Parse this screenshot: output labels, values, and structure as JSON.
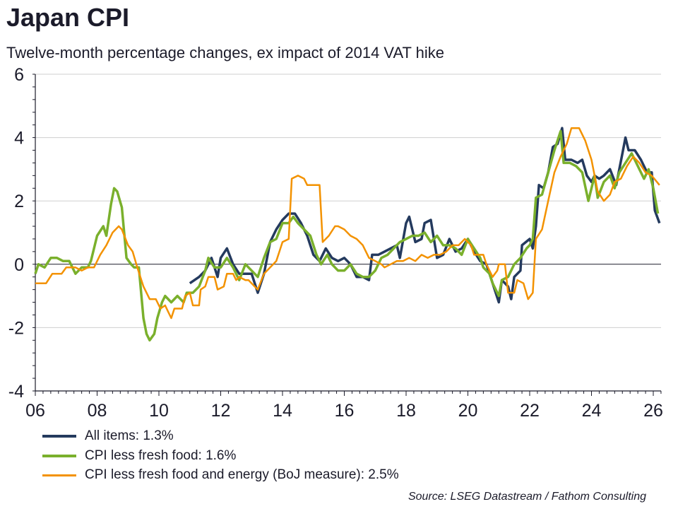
{
  "title": "Japan CPI",
  "subtitle": "Twelve-month percentage changes, ex impact of 2014 VAT hike",
  "source": "Source: LSEG Datastream / Fathom Consulting",
  "chart_data": {
    "type": "line",
    "title": "Japan CPI",
    "ylim": [
      -4,
      6
    ],
    "xlim": [
      2006,
      2026.3
    ],
    "yticks": [
      "-4",
      "-2",
      "0",
      "2",
      "4",
      "6"
    ],
    "xticks": [
      "06",
      "08",
      "10",
      "12",
      "14",
      "16",
      "18",
      "20",
      "22",
      "24",
      "26"
    ],
    "grid": true,
    "legend_position": "bottom-left",
    "series": [
      {
        "name": "All items: 1.3%",
        "color": "#243a5e",
        "width": 3.5,
        "x": [
          2011.0,
          2011.3,
          2011.5,
          2011.7,
          2011.9,
          2012.0,
          2012.2,
          2012.4,
          2012.6,
          2012.8,
          2013.0,
          2013.2,
          2013.4,
          2013.6,
          2013.8,
          2014.0,
          2014.2,
          2014.4,
          2014.6,
          2014.8,
          2015.0,
          2015.2,
          2015.4,
          2015.6,
          2015.8,
          2016.0,
          2016.2,
          2016.4,
          2016.6,
          2016.8,
          2016.9,
          2017.1,
          2017.3,
          2017.5,
          2017.7,
          2017.8,
          2018.0,
          2018.1,
          2018.3,
          2018.5,
          2018.6,
          2018.8,
          2018.9,
          2019.0,
          2019.2,
          2019.4,
          2019.6,
          2019.8,
          2020.0,
          2020.2,
          2020.4,
          2020.6,
          2020.8,
          2021.0,
          2021.1,
          2021.3,
          2021.4,
          2021.5,
          2021.7,
          2021.75,
          2022.0,
          2022.1,
          2022.2,
          2022.3,
          2022.45,
          2022.6,
          2022.75,
          2022.9,
          2023.05,
          2023.15,
          2023.35,
          2023.55,
          2023.7,
          2023.85,
          2024.0,
          2024.1,
          2024.25,
          2024.4,
          2024.6,
          2024.8,
          2025.0,
          2025.1,
          2025.2,
          2025.4,
          2025.6,
          2025.8,
          2025.95,
          2026.05,
          2026.2
        ],
        "y": [
          -0.6,
          -0.4,
          -0.2,
          0.2,
          -0.4,
          0.2,
          0.5,
          0.0,
          -0.3,
          -0.3,
          -0.3,
          -0.9,
          -0.3,
          0.7,
          1.1,
          1.4,
          1.6,
          1.6,
          1.3,
          0.9,
          0.3,
          0.1,
          0.5,
          0.2,
          0.1,
          0.2,
          0.0,
          -0.4,
          -0.4,
          -0.5,
          0.3,
          0.3,
          0.4,
          0.5,
          0.6,
          0.2,
          1.3,
          1.5,
          0.7,
          0.8,
          1.3,
          1.4,
          0.8,
          0.2,
          0.3,
          0.8,
          0.4,
          0.5,
          0.8,
          0.4,
          0.1,
          0.0,
          -0.6,
          -1.2,
          -0.5,
          -0.7,
          -1.1,
          -0.4,
          -0.2,
          0.6,
          0.8,
          0.5,
          1.2,
          2.5,
          2.4,
          2.9,
          3.7,
          3.8,
          4.3,
          3.3,
          3.3,
          3.2,
          3.3,
          2.8,
          2.6,
          2.8,
          2.7,
          2.8,
          3.0,
          2.5,
          3.5,
          4.0,
          3.6,
          3.6,
          3.3,
          2.9,
          2.9,
          1.7,
          1.3
        ]
      },
      {
        "name": "CPI less fresh food: 1.6%",
        "color": "#7ab02c",
        "width": 3.5,
        "x": [
          2006.0,
          2006.1,
          2006.3,
          2006.5,
          2006.7,
          2006.9,
          2007.1,
          2007.3,
          2007.5,
          2007.7,
          2007.8,
          2008.0,
          2008.2,
          2008.3,
          2008.45,
          2008.55,
          2008.65,
          2008.8,
          2008.95,
          2009.1,
          2009.2,
          2009.35,
          2009.5,
          2009.6,
          2009.7,
          2009.85,
          2009.95,
          2010.1,
          2010.2,
          2010.4,
          2010.6,
          2010.8,
          2010.9,
          2011.1,
          2011.3,
          2011.5,
          2011.6,
          2011.8,
          2012.0,
          2012.2,
          2012.4,
          2012.6,
          2012.8,
          2013.0,
          2013.2,
          2013.4,
          2013.6,
          2013.8,
          2014.0,
          2014.2,
          2014.35,
          2014.5,
          2014.7,
          2014.9,
          2015.1,
          2015.25,
          2015.45,
          2015.6,
          2015.8,
          2016.0,
          2016.2,
          2016.4,
          2016.6,
          2016.8,
          2017.0,
          2017.2,
          2017.4,
          2017.6,
          2017.8,
          2018.0,
          2018.2,
          2018.4,
          2018.6,
          2018.8,
          2019.0,
          2019.2,
          2019.4,
          2019.6,
          2019.8,
          2020.0,
          2020.2,
          2020.4,
          2020.5,
          2020.7,
          2020.8,
          2021.0,
          2021.1,
          2021.3,
          2021.5,
          2021.7,
          2021.9,
          2022.0,
          2022.1,
          2022.2,
          2022.4,
          2022.6,
          2022.8,
          2023.0,
          2023.1,
          2023.3,
          2023.5,
          2023.7,
          2023.9,
          2024.1,
          2024.2,
          2024.4,
          2024.6,
          2024.75,
          2024.9,
          2025.1,
          2025.3,
          2025.5,
          2025.7,
          2025.85,
          2026.0,
          2026.15
        ],
        "y": [
          -0.3,
          0.0,
          -0.1,
          0.2,
          0.2,
          0.1,
          0.1,
          -0.3,
          -0.1,
          -0.1,
          0.1,
          0.9,
          1.2,
          0.9,
          1.9,
          2.4,
          2.3,
          1.8,
          0.2,
          0.0,
          -0.1,
          -0.1,
          -1.7,
          -2.2,
          -2.4,
          -2.2,
          -1.7,
          -1.2,
          -1.0,
          -1.2,
          -1.0,
          -1.2,
          -0.9,
          -0.9,
          -0.7,
          -0.2,
          0.2,
          -0.1,
          -0.1,
          0.2,
          -0.1,
          -0.5,
          0.0,
          -0.2,
          -0.4,
          0.2,
          0.7,
          0.8,
          1.3,
          1.3,
          1.5,
          1.3,
          1.1,
          0.9,
          0.3,
          0.0,
          0.3,
          0.0,
          -0.2,
          -0.2,
          0.0,
          -0.3,
          -0.4,
          -0.4,
          -0.2,
          0.2,
          0.3,
          0.5,
          0.7,
          0.8,
          0.9,
          0.9,
          1.0,
          0.7,
          0.9,
          0.6,
          0.6,
          0.5,
          0.3,
          0.8,
          0.5,
          0.2,
          -0.1,
          -0.3,
          -0.6,
          -1.0,
          -0.5,
          -0.4,
          0.0,
          0.2,
          0.5,
          0.6,
          0.8,
          2.1,
          2.2,
          2.9,
          3.6,
          4.2,
          3.2,
          3.2,
          3.1,
          2.9,
          2.0,
          2.8,
          2.1,
          2.6,
          2.8,
          2.4,
          2.9,
          3.2,
          3.5,
          3.1,
          2.7,
          3.0,
          2.4,
          1.6
        ]
      },
      {
        "name": "CPI less fresh food and energy (BoJ measure): 2.5%",
        "color": "#f39200",
        "width": 2.5,
        "x": [
          2006.0,
          2006.35,
          2006.55,
          2006.85,
          2007.0,
          2007.1,
          2007.3,
          2007.5,
          2007.7,
          2007.9,
          2008.1,
          2008.3,
          2008.5,
          2008.7,
          2008.8,
          2009.0,
          2009.15,
          2009.3,
          2009.5,
          2009.7,
          2009.9,
          2010.05,
          2010.2,
          2010.3,
          2010.4,
          2010.5,
          2010.75,
          2010.85,
          2011.0,
          2011.1,
          2011.3,
          2011.35,
          2011.5,
          2011.6,
          2011.8,
          2011.9,
          2012.1,
          2012.2,
          2012.4,
          2012.5,
          2012.6,
          2012.8,
          2012.9,
          2013.1,
          2013.2,
          2013.4,
          2013.6,
          2013.8,
          2013.9,
          2014.0,
          2014.2,
          2014.3,
          2014.5,
          2014.7,
          2014.8,
          2015.2,
          2015.3,
          2015.5,
          2015.7,
          2015.8,
          2016.0,
          2016.2,
          2016.4,
          2016.6,
          2016.8,
          2017.0,
          2017.2,
          2017.3,
          2017.5,
          2017.7,
          2017.9,
          2018.1,
          2018.3,
          2018.5,
          2018.7,
          2018.9,
          2019.1,
          2019.3,
          2019.5,
          2019.7,
          2019.9,
          2020.1,
          2020.2,
          2020.5,
          2020.6,
          2020.8,
          2020.95,
          2021.0,
          2021.2,
          2021.3,
          2021.5,
          2021.6,
          2021.8,
          2021.95,
          2022.1,
          2022.2,
          2022.4,
          2022.6,
          2022.8,
          2023.0,
          2023.2,
          2023.35,
          2023.6,
          2023.8,
          2024.0,
          2024.2,
          2024.4,
          2024.6,
          2024.75,
          2024.95,
          2025.15,
          2025.35,
          2025.55,
          2025.75,
          2025.95,
          2026.2
        ],
        "y": [
          -0.6,
          -0.6,
          -0.3,
          -0.3,
          -0.1,
          -0.1,
          -0.1,
          -0.2,
          -0.1,
          -0.1,
          0.3,
          0.6,
          1.0,
          1.2,
          1.1,
          0.6,
          0.4,
          -0.1,
          -0.7,
          -1.1,
          -1.1,
          -1.4,
          -1.3,
          -1.5,
          -1.7,
          -1.4,
          -1.4,
          -1.0,
          -0.9,
          -1.3,
          -1.3,
          -0.8,
          -0.7,
          -0.4,
          -0.4,
          -0.8,
          -0.7,
          -0.3,
          -0.3,
          -0.5,
          -0.4,
          -0.5,
          -0.5,
          -0.7,
          -0.8,
          -0.3,
          -0.1,
          0.1,
          0.4,
          0.7,
          0.8,
          2.7,
          2.8,
          2.7,
          2.5,
          2.5,
          0.7,
          0.9,
          1.2,
          1.2,
          1.1,
          0.9,
          0.8,
          0.6,
          0.2,
          0.1,
          0.0,
          -0.1,
          0.0,
          0.1,
          0.1,
          0.2,
          0.1,
          0.3,
          0.2,
          0.3,
          0.3,
          0.4,
          0.6,
          0.6,
          0.8,
          0.6,
          0.3,
          0.3,
          0.0,
          -0.4,
          -0.2,
          0.0,
          0.0,
          -0.9,
          -0.9,
          -0.5,
          -0.6,
          -1.1,
          -0.9,
          0.8,
          1.1,
          2.0,
          2.9,
          3.4,
          3.8,
          4.3,
          4.3,
          3.9,
          3.3,
          2.3,
          2.0,
          2.2,
          2.6,
          2.7,
          3.1,
          3.4,
          3.2,
          2.9,
          2.8,
          2.5
        ]
      }
    ]
  }
}
